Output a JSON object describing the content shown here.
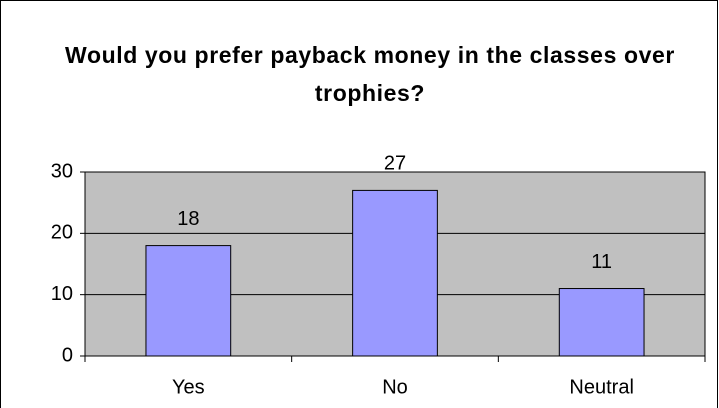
{
  "chart_data": {
    "type": "bar",
    "title": "Would you prefer payback money in the classes over trophies?",
    "categories": [
      "Yes",
      "No",
      "Neutral"
    ],
    "values": [
      18,
      27,
      11
    ],
    "color": "#9999ff",
    "ylim": [
      0,
      30
    ],
    "yticks": [
      0,
      10,
      20,
      30
    ],
    "grid": true
  }
}
